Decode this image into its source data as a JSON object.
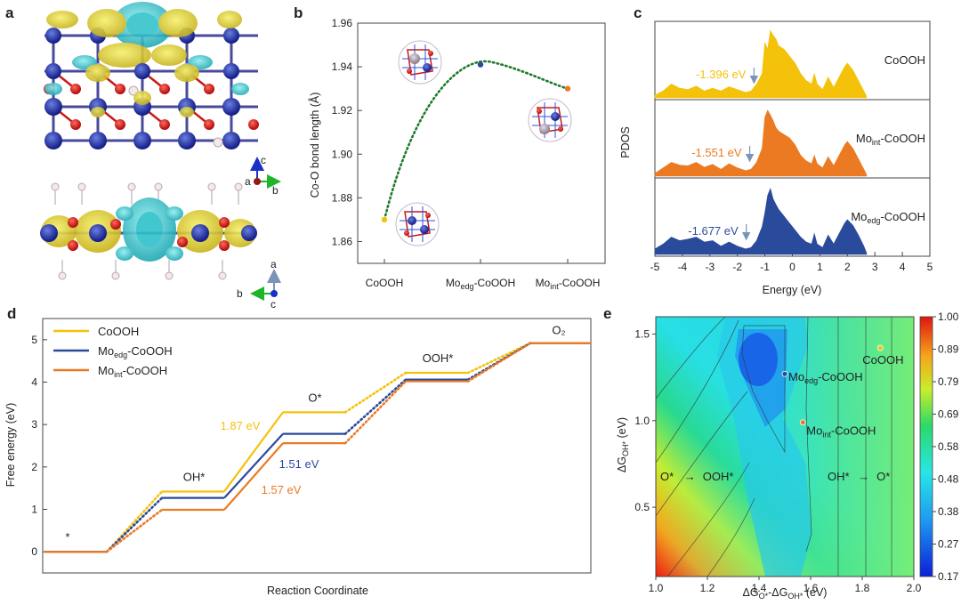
{
  "colors": {
    "cooh": "#f5c20b",
    "mo_edg": "#2a4b9b",
    "mo_int": "#ec7a22",
    "green": "#1f7a2a"
  },
  "panels": {
    "a": "a",
    "b": "b",
    "c": "c",
    "d": "d",
    "e": "e"
  },
  "axes_a": {
    "top": {
      "up": "c",
      "origin": "a",
      "right": "b"
    },
    "bottom": {
      "up": "a",
      "left": "b",
      "origin": "c"
    }
  },
  "chart_data": [
    {
      "id": "b",
      "type": "scatter",
      "categories": [
        "CoOOH",
        "Mo_edg-CoOOH",
        "Mo_int-CoOOH"
      ],
      "category_labels": [
        {
          "main": "CoOOH",
          "sub": ""
        },
        {
          "main": "Mo",
          "sub": "edg",
          "rest": "-CoOOH"
        },
        {
          "main": "Mo",
          "sub": "int",
          "rest": "-CoOOH"
        }
      ],
      "values": [
        1.87,
        1.941,
        1.93
      ],
      "point_colors": [
        "#f5c20b",
        "#2a4b9b",
        "#ec7a22"
      ],
      "ylabel": "Co-O bond length (Å)",
      "ylim": [
        1.85,
        1.96
      ],
      "yticks": [
        "1.86",
        "1.88",
        "1.90",
        "1.92",
        "1.94",
        "1.96"
      ]
    },
    {
      "id": "c",
      "type": "area",
      "xlabel": "Energy (eV)",
      "ylabel": "PDOS",
      "xlim": [
        -5,
        5
      ],
      "xticks": [
        "-5",
        "-4",
        "-3",
        "-2",
        "-1",
        "0",
        "1",
        "2",
        "3",
        "4",
        "5"
      ],
      "series": [
        {
          "name": "CoOOH",
          "label_main": "CoOOH",
          "label_sub": "",
          "label_rest": "",
          "color": "#f5c20b",
          "center": "-1.396 eV",
          "center_x": -1.396,
          "x": [
            -5,
            -4.7,
            -4.4,
            -4.1,
            -3.8,
            -3.5,
            -3.2,
            -2.9,
            -2.6,
            -2.3,
            -2.0,
            -1.7,
            -1.5,
            -1.3,
            -1.1,
            -1.0,
            -0.9,
            -0.8,
            -0.7,
            -0.6,
            -0.5,
            -0.3,
            -0.1,
            0.1,
            0.3,
            0.5,
            0.7,
            0.8,
            0.9,
            1.1,
            1.3,
            1.5,
            1.7,
            1.9,
            2.0,
            2.2,
            2.4,
            2.6,
            2.7
          ],
          "y": [
            0.04,
            0.1,
            0.2,
            0.14,
            0.12,
            0.17,
            0.1,
            0.14,
            0.1,
            0.16,
            0.12,
            0.08,
            0.1,
            0.2,
            0.35,
            0.8,
            0.7,
            0.97,
            0.9,
            0.85,
            0.75,
            0.7,
            0.6,
            0.5,
            0.35,
            0.25,
            0.2,
            0.35,
            0.2,
            0.12,
            0.3,
            0.15,
            0.3,
            0.45,
            0.5,
            0.4,
            0.25,
            0.1,
            0.02
          ]
        },
        {
          "name": "Mo_int-CoOOH",
          "label_main": "Mo",
          "label_sub": "int",
          "label_rest": "-CoOOH",
          "color": "#ec7a22",
          "center": "-1.551 eV",
          "center_x": -1.551,
          "x": [
            -5,
            -4.7,
            -4.4,
            -4.1,
            -3.8,
            -3.5,
            -3.2,
            -2.9,
            -2.6,
            -2.3,
            -2.0,
            -1.7,
            -1.5,
            -1.3,
            -1.1,
            -1.0,
            -0.9,
            -0.8,
            -0.7,
            -0.6,
            -0.5,
            -0.3,
            -0.1,
            0.1,
            0.3,
            0.5,
            0.7,
            0.8,
            0.9,
            1.1,
            1.3,
            1.5,
            1.7,
            1.9,
            2.0,
            2.2,
            2.4,
            2.6,
            2.7
          ],
          "y": [
            0.04,
            0.12,
            0.2,
            0.16,
            0.15,
            0.2,
            0.13,
            0.17,
            0.1,
            0.18,
            0.12,
            0.08,
            0.1,
            0.2,
            0.4,
            0.85,
            0.95,
            0.88,
            0.8,
            0.7,
            0.65,
            0.6,
            0.55,
            0.45,
            0.3,
            0.22,
            0.18,
            0.3,
            0.18,
            0.12,
            0.28,
            0.15,
            0.3,
            0.45,
            0.5,
            0.4,
            0.25,
            0.1,
            0.02
          ]
        },
        {
          "name": "Mo_edg-CoOOH",
          "label_main": "Mo",
          "label_sub": "edg",
          "label_rest": "-CoOOH",
          "color": "#2a4b9b",
          "center": "-1.677 eV",
          "center_x": -1.677,
          "x": [
            -5,
            -4.7,
            -4.4,
            -4.1,
            -3.8,
            -3.5,
            -3.2,
            -2.9,
            -2.6,
            -2.3,
            -2.0,
            -1.7,
            -1.5,
            -1.3,
            -1.1,
            -1.0,
            -0.9,
            -0.8,
            -0.7,
            -0.6,
            -0.5,
            -0.3,
            -0.1,
            0.1,
            0.3,
            0.5,
            0.7,
            0.8,
            0.9,
            1.1,
            1.3,
            1.5,
            1.7,
            1.9,
            2.0,
            2.2,
            2.4,
            2.6,
            2.7
          ],
          "y": [
            0.08,
            0.15,
            0.25,
            0.2,
            0.22,
            0.25,
            0.18,
            0.2,
            0.12,
            0.18,
            0.12,
            0.08,
            0.1,
            0.2,
            0.4,
            0.6,
            0.85,
            0.95,
            0.8,
            0.72,
            0.65,
            0.55,
            0.45,
            0.35,
            0.25,
            0.18,
            0.15,
            0.3,
            0.15,
            0.1,
            0.28,
            0.15,
            0.3,
            0.45,
            0.5,
            0.42,
            0.28,
            0.12,
            0.02
          ]
        }
      ]
    },
    {
      "id": "d",
      "type": "line",
      "xlabel": "Reaction Coordinate",
      "ylabel": "Free energy (eV)",
      "ylim": [
        -0.5,
        5.5
      ],
      "yticks": [
        "0",
        "1",
        "2",
        "3",
        "4",
        "5"
      ],
      "states": [
        "*",
        "OH*",
        "O*",
        "OOH*",
        "O₂"
      ],
      "state_energies_shared": {
        "*": 0,
        "O2": 4.92
      },
      "series": [
        {
          "name": "CoOOH",
          "label_main": "CoOOH",
          "label_sub": "",
          "label_rest": "",
          "color": "#f5c20b",
          "energies": [
            0,
            1.42,
            3.29,
            4.22,
            4.92
          ]
        },
        {
          "name": "Mo_edg-CoOOH",
          "label_main": "Mo",
          "label_sub": "edg",
          "label_rest": "-CoOOH",
          "color": "#2a4b9b",
          "energies": [
            0,
            1.27,
            2.78,
            4.06,
            4.92
          ]
        },
        {
          "name": "Mo_int-CoOOH",
          "label_main": "Mo",
          "label_sub": "int",
          "label_rest": "-CoOOH",
          "color": "#ec7a22",
          "energies": [
            0,
            0.99,
            2.56,
            4.02,
            4.92
          ]
        }
      ],
      "annotations": [
        {
          "text": "1.87 eV",
          "color": "#f5c20b"
        },
        {
          "text": "1.51 eV",
          "color": "#2a4b9b"
        },
        {
          "text": "1.57 eV",
          "color": "#ec7a22"
        }
      ]
    },
    {
      "id": "e",
      "type": "heatmap",
      "xlabel": "ΔG_O* − ΔG_OH* (eV)",
      "ylabel": "ΔG_OH* (eV)",
      "xlim": [
        1.0,
        2.0
      ],
      "ylim": [
        0.1,
        1.6
      ],
      "xticks": [
        "1.0",
        "1.2",
        "1.4",
        "1.6",
        "1.8",
        "2.0"
      ],
      "yticks": [
        "0.5",
        "1.0",
        "1.5"
      ],
      "colorbar_ticks": [
        "1.00",
        "0.89",
        "0.79",
        "0.69",
        "0.58",
        "0.48",
        "0.38",
        "0.27",
        "0.17"
      ],
      "colorbar_range": [
        0.17,
        1.0
      ],
      "points": [
        {
          "name": "CoOOH",
          "x": 1.87,
          "y": 1.42,
          "color": "#f5c20b"
        },
        {
          "name": "Mo_edg-CoOOH",
          "x": 1.5,
          "y": 1.27,
          "color": "#2a4b9b"
        },
        {
          "name": "Mo_int-CoOOH",
          "x": 1.57,
          "y": 0.99,
          "color": "#ec7a22"
        }
      ],
      "region_labels": [
        "O* → OOH*",
        "OH* → O*"
      ]
    }
  ]
}
